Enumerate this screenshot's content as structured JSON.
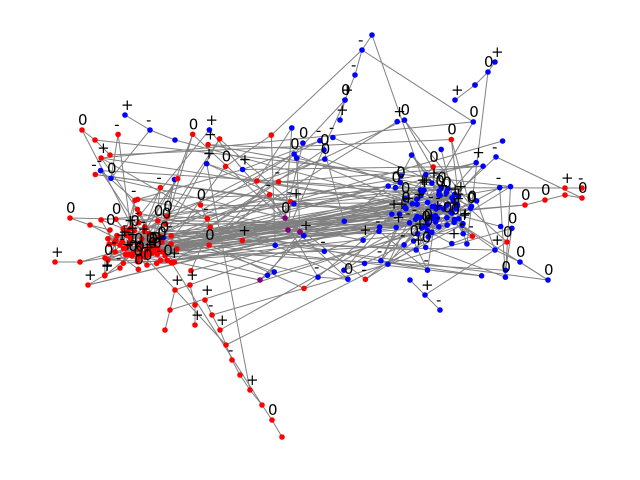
{
  "figure": {
    "type": "network-graph",
    "background": "#ffffff",
    "edge_color": "#808080",
    "label_color": "#000000"
  },
  "legend": {
    "class_colors": {
      "red": "#ff0000",
      "blue": "#0000ff",
      "purple": "#7f007f"
    }
  },
  "node_label_vocabulary": [
    "0",
    "+",
    "-"
  ]
}
